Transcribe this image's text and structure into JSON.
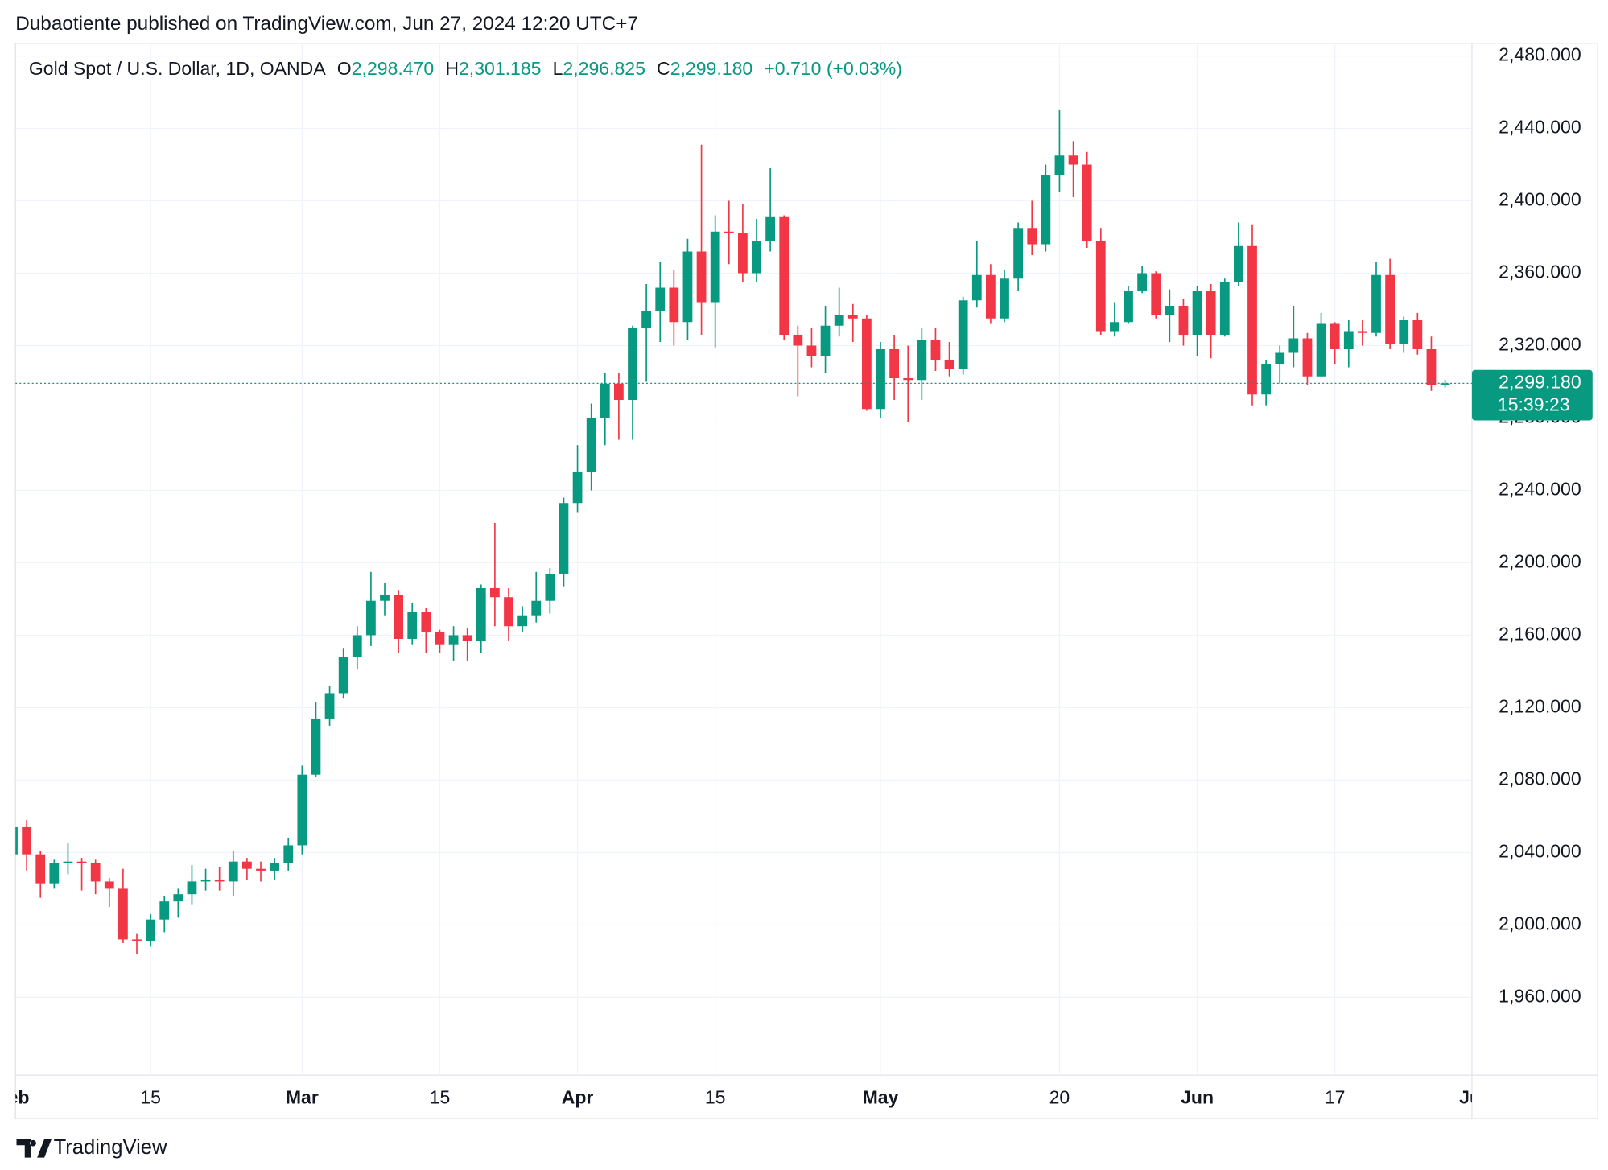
{
  "header": "Dubaotiente published on TradingView.com, Jun 27, 2024 12:20 UTC+7",
  "footer": "TradingView",
  "chart_data": {
    "type": "candlestick",
    "title": "Gold Spot / U.S. Dollar, 1D, OANDA",
    "legend_values": [
      {
        "key": "O",
        "label": "2,298.470"
      },
      {
        "key": "H",
        "label": "2,301.185"
      },
      {
        "key": "L",
        "label": "2,296.825"
      },
      {
        "key": "C",
        "label": "2,299.180"
      }
    ],
    "change_label": "+0.710 (+0.03%)",
    "up_color": "#089981",
    "down_color": "#f23645",
    "grid": true,
    "categories": [
      "Feb",
      null,
      null,
      null,
      null,
      null,
      null,
      null,
      null,
      null,
      "15",
      null,
      null,
      null,
      null,
      null,
      null,
      null,
      null,
      null,
      null,
      "Mar",
      null,
      null,
      null,
      null,
      null,
      null,
      null,
      null,
      null,
      "15",
      null,
      null,
      null,
      null,
      null,
      null,
      null,
      null,
      null,
      "Apr",
      null,
      null,
      null,
      null,
      null,
      null,
      null,
      null,
      null,
      "15",
      null,
      null,
      null,
      null,
      null,
      null,
      null,
      null,
      null,
      null,
      null,
      "May",
      null,
      null,
      null,
      null,
      null,
      null,
      null,
      null,
      null,
      null,
      null,
      null,
      "20",
      null,
      null,
      null,
      null,
      null,
      null,
      null,
      null,
      null,
      "Jun",
      null,
      null,
      null,
      null,
      null,
      null,
      null,
      null,
      null,
      "17",
      null,
      null,
      null,
      null,
      null,
      null,
      null,
      null,
      null,
      "Jul"
    ],
    "open": [
      2039,
      2054,
      2039,
      2023,
      2034,
      2035,
      2034,
      2024,
      2020,
      1992,
      1991,
      2003,
      2013,
      2017,
      2024,
      2025,
      2024,
      2035,
      2031,
      2030,
      2034,
      2044,
      2083,
      2114,
      2128,
      2148,
      2160,
      2179,
      2182,
      2158,
      2173,
      2162,
      2155,
      2160,
      2157,
      2186,
      2181,
      2165,
      2171,
      2179,
      2194,
      2233,
      2250,
      2280,
      2299,
      2290,
      2330,
      2339,
      2352,
      2333,
      2372,
      2344,
      2383,
      2382,
      2360,
      2378,
      2391,
      2326,
      2320,
      2314,
      2331,
      2337,
      2335,
      2285,
      2318,
      2302,
      2301,
      2323,
      2312,
      2307,
      2345,
      2359,
      2335,
      2357,
      2385,
      2376,
      2414,
      2425,
      2420,
      2378,
      2328,
      2333,
      2350,
      2360,
      2337,
      2342,
      2326,
      2350,
      2326,
      2355,
      2375,
      2293,
      2310,
      2316,
      2324,
      2303,
      2332,
      2318,
      2328,
      2327,
      2359,
      2321,
      2334,
      2318,
      2298.47,
      null,
      null
    ],
    "high": [
      2062,
      2058,
      2041,
      2036,
      2045,
      2037,
      2036,
      2026,
      2031,
      1995,
      2006,
      2016,
      2020,
      2033,
      2031,
      2032,
      2041,
      2037,
      2035,
      2037,
      2048,
      2088,
      2123,
      2132,
      2153,
      2165,
      2195,
      2189,
      2185,
      2178,
      2175,
      2163,
      2165,
      2164,
      2188,
      2222,
      2186,
      2176,
      2195,
      2197,
      2236,
      2265,
      2288,
      2305,
      2305,
      2331,
      2354,
      2366,
      2362,
      2379,
      2431,
      2392,
      2400,
      2398,
      2390,
      2418,
      2392,
      2331,
      2330,
      2342,
      2352,
      2343,
      2337,
      2322,
      2326,
      2320,
      2330,
      2330,
      2322,
      2347,
      2378,
      2365,
      2362,
      2388,
      2400,
      2420,
      2450,
      2433,
      2427,
      2385,
      2344,
      2353,
      2364,
      2361,
      2351,
      2346,
      2353,
      2354,
      2357,
      2388,
      2387,
      2312,
      2320,
      2342,
      2327,
      2338,
      2333,
      2334,
      2334,
      2366,
      2368,
      2336,
      2338,
      2325,
      2301.185,
      null,
      null
    ],
    "low": [
      2032,
      2030,
      2015,
      2020,
      2028,
      2019,
      2017,
      2010,
      1990,
      1984,
      1988,
      1996,
      2004,
      2011,
      2019,
      2019,
      2016,
      2025,
      2024,
      2025,
      2030,
      2039,
      2082,
      2110,
      2125,
      2141,
      2154,
      2171,
      2150,
      2155,
      2150,
      2150,
      2146,
      2146,
      2150,
      2165,
      2157,
      2162,
      2167,
      2172,
      2187,
      2228,
      2240,
      2265,
      2268,
      2268,
      2300,
      2322,
      2320,
      2323,
      2326,
      2319,
      2365,
      2355,
      2355,
      2372,
      2323,
      2292,
      2308,
      2305,
      2325,
      2322,
      2284,
      2280,
      2290,
      2278,
      2290,
      2306,
      2303,
      2304,
      2341,
      2332,
      2333,
      2350,
      2370,
      2372,
      2405,
      2402,
      2374,
      2326,
      2325,
      2332,
      2349,
      2335,
      2322,
      2320,
      2314,
      2313,
      2325,
      2353,
      2287,
      2287,
      2299,
      2308,
      2298,
      2303,
      2310,
      2308,
      2320,
      2325,
      2318,
      2316,
      2315,
      2295,
      2296.825,
      null,
      null
    ],
    "close": [
      2054,
      2039,
      2023,
      2034,
      2035,
      2034,
      2024,
      2020,
      1992,
      1991,
      2003,
      2013,
      2017,
      2024,
      2025,
      2024,
      2035,
      2031,
      2030,
      2034,
      2044,
      2083,
      2114,
      2128,
      2148,
      2160,
      2179,
      2182,
      2158,
      2173,
      2162,
      2155,
      2160,
      2157,
      2186,
      2181,
      2165,
      2171,
      2179,
      2194,
      2233,
      2250,
      2280,
      2299,
      2290,
      2330,
      2339,
      2352,
      2333,
      2372,
      2344,
      2383,
      2382,
      2360,
      2378,
      2391,
      2326,
      2320,
      2314,
      2331,
      2337,
      2335,
      2285,
      2318,
      2302,
      2301,
      2323,
      2312,
      2307,
      2345,
      2359,
      2335,
      2357,
      2385,
      2376,
      2414,
      2425,
      2420,
      2378,
      2328,
      2333,
      2350,
      2360,
      2337,
      2342,
      2326,
      2350,
      2326,
      2355,
      2375,
      2293,
      2310,
      2316,
      2324,
      2303,
      2332,
      2318,
      2328,
      2327,
      2359,
      2321,
      2334,
      2318,
      2298,
      2299.18,
      null,
      null
    ],
    "ylim": [
      1917,
      2487
    ],
    "yticks": [
      {
        "value": 1960,
        "label": "1,960.000"
      },
      {
        "value": 2000,
        "label": "2,000.000"
      },
      {
        "value": 2040,
        "label": "2,040.000"
      },
      {
        "value": 2080,
        "label": "2,080.000"
      },
      {
        "value": 2120,
        "label": "2,120.000"
      },
      {
        "value": 2160,
        "label": "2,160.000"
      },
      {
        "value": 2200,
        "label": "2,200.000"
      },
      {
        "value": 2240,
        "label": "2,240.000"
      },
      {
        "value": 2280,
        "label": "2,280.000"
      },
      {
        "value": 2320,
        "label": "2,320.000"
      },
      {
        "value": 2360,
        "label": "2,360.000"
      },
      {
        "value": 2400,
        "label": "2,400.000"
      },
      {
        "value": 2440,
        "label": "2,440.000"
      },
      {
        "value": 2480,
        "label": "2,480.000"
      }
    ],
    "last_price": {
      "value": 2299.18,
      "label": "2,299.180",
      "countdown": "15:39:23"
    }
  }
}
